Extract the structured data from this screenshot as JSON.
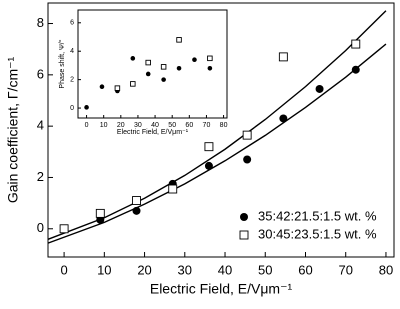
{
  "chart_data": [
    {
      "type": "scatter",
      "x_label": "Electric Field, E/Vμm⁻¹",
      "y_label": "Gain coefficient, Γ/cm⁻¹",
      "xlim": [
        -4,
        82
      ],
      "ylim": [
        -1.1,
        8.8
      ],
      "xticks": [
        0,
        10,
        20,
        30,
        40,
        50,
        60,
        70,
        80
      ],
      "yticks": [
        0,
        2,
        4,
        6,
        8
      ],
      "legend": "lower right",
      "series": [
        {
          "name": "35:42:21.5:1.5 wt. %",
          "marker": "circle",
          "color": "#000000",
          "x": [
            9,
            18,
            27,
            36,
            45.5,
            54.5,
            63.5,
            72.5
          ],
          "values": [
            0.35,
            0.7,
            1.75,
            2.45,
            2.7,
            4.3,
            5.45,
            6.2
          ]
        },
        {
          "name": "30:45:23.5:1.5 wt. %",
          "marker": "square",
          "color": "#000000",
          "x": [
            0,
            9,
            18,
            27,
            36,
            45.5,
            54.5,
            72.5
          ],
          "values": [
            0.0,
            0.6,
            1.1,
            1.55,
            3.2,
            3.65,
            6.7,
            7.2
          ]
        }
      ],
      "fits": [
        {
          "x": [
            -4,
            10,
            20,
            30,
            40,
            50,
            60,
            70,
            80
          ],
          "values": [
            -0.41,
            0.43,
            1.19,
            2.08,
            3.1,
            4.26,
            5.54,
            6.95,
            8.5
          ]
        },
        {
          "x": [
            -4,
            10,
            20,
            30,
            40,
            50,
            60,
            70,
            80
          ],
          "values": [
            -0.56,
            0.25,
            0.96,
            1.75,
            2.65,
            3.64,
            4.73,
            5.91,
            7.2
          ]
        }
      ]
    },
    {
      "type": "scatter",
      "x_label": "Electric Field, E/Vμm⁻¹",
      "y_label": "Phase shift, Ψ/°",
      "xlim": [
        -5,
        82
      ],
      "ylim": [
        -0.7,
        6.9
      ],
      "xticks": [
        0,
        10,
        20,
        30,
        40,
        50,
        60,
        70,
        80
      ],
      "yticks": [
        0,
        2,
        4,
        6
      ],
      "series": [
        {
          "marker": "circle",
          "color": "#000000",
          "x": [
            0,
            9,
            18,
            27,
            36,
            45,
            54,
            63,
            72
          ],
          "values": [
            0.05,
            1.5,
            1.2,
            3.5,
            2.4,
            2.0,
            2.8,
            3.4,
            2.8
          ]
        },
        {
          "marker": "square",
          "color": "#000000",
          "x": [
            18,
            27,
            36,
            45,
            54,
            72
          ],
          "values": [
            1.4,
            1.7,
            3.2,
            2.9,
            4.8,
            3.5
          ]
        }
      ]
    }
  ]
}
